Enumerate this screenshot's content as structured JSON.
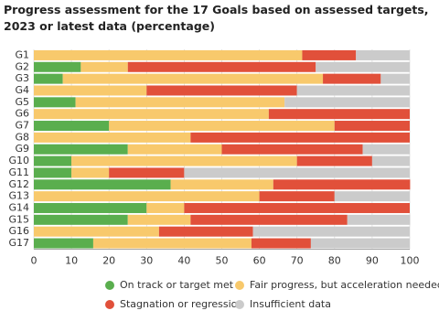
{
  "chart_data": {
    "type": "stacked-bar-horizontal",
    "title": "Progress assessment for the 17 Goals based on assessed targets, 2023 or latest data (percentage)",
    "categories": [
      "G1",
      "G2",
      "G3",
      "G4",
      "G5",
      "G6",
      "G7",
      "G8",
      "G9",
      "G10",
      "G11",
      "G12",
      "G13",
      "G14",
      "G15",
      "G16",
      "G17"
    ],
    "series": [
      {
        "name": "On track or target met",
        "color": "#5aae4e",
        "values": [
          0,
          12.5,
          7.7,
          0,
          11.1,
          0,
          20,
          0,
          25,
          10,
          10,
          36.4,
          0,
          30,
          25,
          0,
          15.8
        ]
      },
      {
        "name": "Fair progress, but acceleration needed",
        "color": "#f8c96c",
        "values": [
          71.4,
          12.5,
          69.2,
          30,
          55.6,
          62.5,
          60,
          41.7,
          25,
          60,
          10,
          27.3,
          60,
          10,
          16.7,
          33.3,
          42.1
        ]
      },
      {
        "name": "Stagnation or regression",
        "color": "#e1503a",
        "values": [
          14.3,
          50,
          15.4,
          40,
          0,
          37.5,
          20,
          58.3,
          37.5,
          20,
          20,
          36.4,
          20,
          60,
          41.7,
          25,
          15.8
        ]
      },
      {
        "name": "Insufficient data",
        "color": "#cbcbcb",
        "values": [
          14.3,
          25,
          7.7,
          30,
          33.3,
          0,
          0,
          0,
          12.5,
          10,
          60,
          0,
          20,
          0,
          16.7,
          41.7,
          26.3
        ]
      }
    ],
    "xlim": [
      0,
      100
    ],
    "xticks": [
      0,
      10,
      20,
      30,
      40,
      50,
      60,
      70,
      80,
      90,
      100
    ],
    "grid": true
  }
}
